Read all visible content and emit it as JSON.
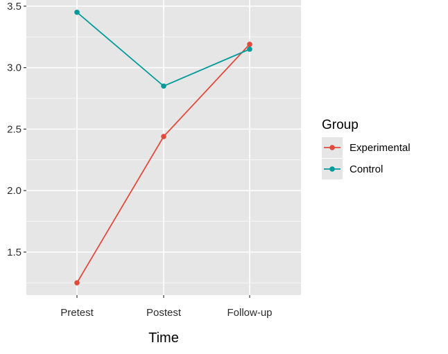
{
  "chart_data": {
    "type": "line",
    "title": "",
    "xlabel": "Time",
    "ylabel": "",
    "categories": [
      "Pretest",
      "Postest",
      "Follow-up"
    ],
    "series": [
      {
        "name": "Experimental",
        "color": "#e24a3b",
        "values": [
          1.25,
          2.44,
          3.19
        ]
      },
      {
        "name": "Control",
        "color": "#009a9a",
        "values": [
          3.45,
          2.85,
          3.15
        ]
      }
    ],
    "y_ticks": [
      "1.5",
      "2.0",
      "2.5",
      "3.0",
      "3.5"
    ],
    "ylim": [
      1.15,
      3.55
    ],
    "legend": {
      "title": "Group",
      "placement": "right"
    },
    "grid": true,
    "panel_background": "#e6e6e6",
    "grid_color": "#ffffff"
  }
}
